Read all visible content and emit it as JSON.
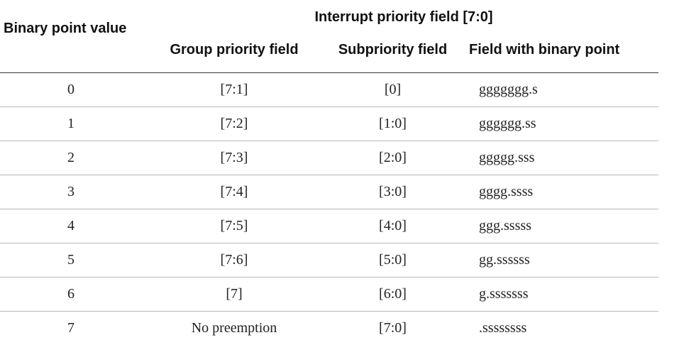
{
  "table": {
    "header_group": "Interrupt priority field [7:0]",
    "header_binary_point": "Binary point value",
    "header_group_priority": "Group priority field",
    "header_subpriority": "Subpriority field",
    "header_field_with_binary_point": "Field with binary point",
    "rows": [
      {
        "binary_point": "0",
        "group_priority": "[7:1]",
        "subpriority": "[0]",
        "field": "ggggggg.s"
      },
      {
        "binary_point": "1",
        "group_priority": "[7:2]",
        "subpriority": "[1:0]",
        "field": "gggggg.ss"
      },
      {
        "binary_point": "2",
        "group_priority": "[7:3]",
        "subpriority": "[2:0]",
        "field": "ggggg.sss"
      },
      {
        "binary_point": "3",
        "group_priority": "[7:4]",
        "subpriority": "[3:0]",
        "field": "gggg.ssss"
      },
      {
        "binary_point": "4",
        "group_priority": "[7:5]",
        "subpriority": "[4:0]",
        "field": "ggg.sssss"
      },
      {
        "binary_point": "5",
        "group_priority": "[7:6]",
        "subpriority": "[5:0]",
        "field": "gg.ssssss"
      },
      {
        "binary_point": "6",
        "group_priority": "[7]",
        "subpriority": "[6:0]",
        "field": "g.sssssss"
      },
      {
        "binary_point": "7",
        "group_priority": "No preemption",
        "subpriority": "[7:0]",
        "field": ".ssssssss"
      }
    ]
  }
}
